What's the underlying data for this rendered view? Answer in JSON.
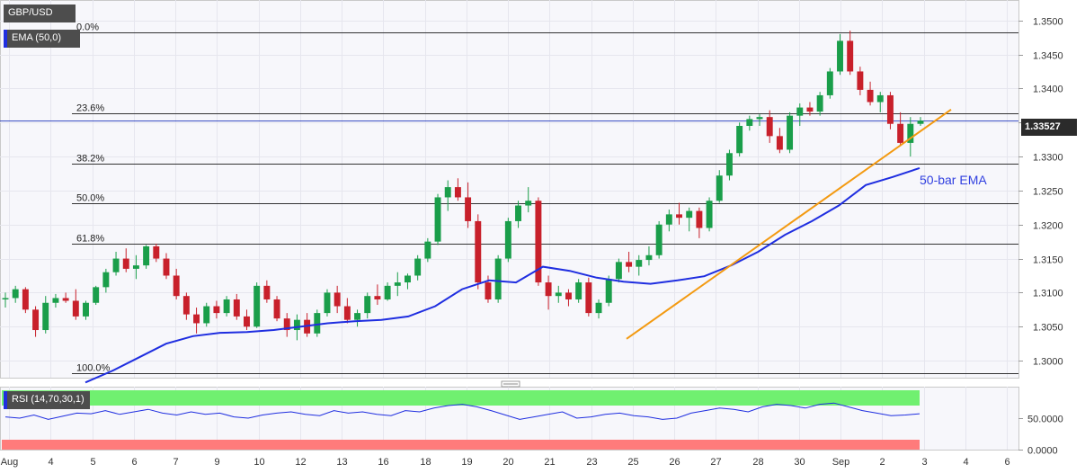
{
  "symbol": "GBP/USD",
  "indicator": "EMA (50,0)",
  "rsi_label": "RSI (14,70,30,1)",
  "last_price": "1.33527",
  "ema_annotation": "50-bar EMA",
  "colors": {
    "bull": "#1a9e4a",
    "bear": "#c8202b",
    "ema": "#1f2ee0",
    "trendline": "#f39a11",
    "fib": "#333333",
    "rsi_overbought": "#70f070",
    "rsi_oversold": "#ff7b7b",
    "rsi_line": "#1f2ee0",
    "badge_bg": "#4d4d4d"
  },
  "chart_data": [
    {
      "type": "candlestick",
      "title": "GBP/USD",
      "ylim": [
        1.2975,
        1.353
      ],
      "y_ticks": [
        "1.3000",
        "1.3050",
        "1.3100",
        "1.3150",
        "1.3200",
        "1.3250",
        "1.3300",
        "1.3350",
        "1.3400",
        "1.3450",
        "1.3500"
      ],
      "x_ticks": [
        "Aug",
        "4",
        "5",
        "6",
        "7",
        "9",
        "10",
        "12",
        "13",
        "16",
        "18",
        "19",
        "20",
        "21",
        "23",
        "25",
        "26",
        "27",
        "28",
        "30",
        "Sep",
        "2",
        "3",
        "4",
        "6"
      ],
      "last_price": 1.33527,
      "fibonacci": [
        {
          "label": "0.0%",
          "value": 1.3483
        },
        {
          "label": "23.6%",
          "value": 1.3363
        },
        {
          "label": "38.2%",
          "value": 1.329
        },
        {
          "label": "50.0%",
          "value": 1.3231
        },
        {
          "label": "61.8%",
          "value": 1.3172
        },
        {
          "label": "100.0%",
          "value": 1.2981
        }
      ],
      "trendline": {
        "from": 1.3032,
        "to": 1.3369
      },
      "ema_50": [
        1.2968,
        1.2985,
        1.3005,
        1.3025,
        1.3036,
        1.3041,
        1.3042,
        1.3045,
        1.305,
        1.3055,
        1.3058,
        1.306,
        1.3065,
        1.308,
        1.3105,
        1.3118,
        1.3115,
        1.3138,
        1.3132,
        1.3122,
        1.3116,
        1.3113,
        1.3118,
        1.3124,
        1.314,
        1.316,
        1.3185,
        1.3205,
        1.3228,
        1.3258,
        1.327,
        1.3283
      ],
      "candles": [
        [
          1.309,
          1.31,
          1.3078,
          1.3092
        ],
        [
          1.3092,
          1.311,
          1.3085,
          1.3105
        ],
        [
          1.3105,
          1.3108,
          1.307,
          1.3075
        ],
        [
          1.3075,
          1.308,
          1.3035,
          1.3045
        ],
        [
          1.3045,
          1.3095,
          1.304,
          1.3085
        ],
        [
          1.3085,
          1.3098,
          1.3078,
          1.3092
        ],
        [
          1.3092,
          1.31,
          1.3085,
          1.3088
        ],
        [
          1.3088,
          1.3105,
          1.306,
          1.3065
        ],
        [
          1.3065,
          1.3088,
          1.306,
          1.3085
        ],
        [
          1.3085,
          1.311,
          1.3082,
          1.3108
        ],
        [
          1.3108,
          1.3135,
          1.31,
          1.313
        ],
        [
          1.313,
          1.316,
          1.3125,
          1.315
        ],
        [
          1.315,
          1.3165,
          1.313,
          1.3135
        ],
        [
          1.3135,
          1.3155,
          1.312,
          1.314
        ],
        [
          1.314,
          1.317,
          1.3135,
          1.3168
        ],
        [
          1.3168,
          1.3172,
          1.3145,
          1.315
        ],
        [
          1.315,
          1.3158,
          1.312,
          1.3125
        ],
        [
          1.3125,
          1.3135,
          1.309,
          1.3095
        ],
        [
          1.3095,
          1.31,
          1.306,
          1.3068
        ],
        [
          1.3068,
          1.3078,
          1.304,
          1.3055
        ],
        [
          1.3055,
          1.3085,
          1.305,
          1.308
        ],
        [
          1.308,
          1.3088,
          1.3062,
          1.307
        ],
        [
          1.307,
          1.3095,
          1.3065,
          1.309
        ],
        [
          1.309,
          1.3098,
          1.306,
          1.3065
        ],
        [
          1.3065,
          1.3075,
          1.3045,
          1.305
        ],
        [
          1.305,
          1.3115,
          1.3048,
          1.311
        ],
        [
          1.311,
          1.3118,
          1.3085,
          1.309
        ],
        [
          1.309,
          1.3095,
          1.3058,
          1.3062
        ],
        [
          1.3062,
          1.307,
          1.3035,
          1.3045
        ],
        [
          1.3045,
          1.3068,
          1.303,
          1.306
        ],
        [
          1.306,
          1.307,
          1.3035,
          1.304
        ],
        [
          1.304,
          1.3075,
          1.3035,
          1.307
        ],
        [
          1.307,
          1.3105,
          1.3065,
          1.31
        ],
        [
          1.31,
          1.311,
          1.307,
          1.308
        ],
        [
          1.308,
          1.3092,
          1.3055,
          1.306
        ],
        [
          1.306,
          1.3075,
          1.305,
          1.307
        ],
        [
          1.307,
          1.31,
          1.3062,
          1.3095
        ],
        [
          1.3095,
          1.3112,
          1.3082,
          1.309
        ],
        [
          1.309,
          1.3115,
          1.3088,
          1.311
        ],
        [
          1.311,
          1.313,
          1.3095,
          1.3115
        ],
        [
          1.3115,
          1.3128,
          1.3105,
          1.3125
        ],
        [
          1.3125,
          1.3155,
          1.3118,
          1.315
        ],
        [
          1.315,
          1.318,
          1.3145,
          1.3175
        ],
        [
          1.3175,
          1.3245,
          1.317,
          1.324
        ],
        [
          1.324,
          1.3265,
          1.322,
          1.3255
        ],
        [
          1.3255,
          1.3268,
          1.3235,
          1.324
        ],
        [
          1.324,
          1.3262,
          1.3195,
          1.3205
        ],
        [
          1.3205,
          1.3215,
          1.3105,
          1.3115
        ],
        [
          1.3115,
          1.3125,
          1.3085,
          1.309
        ],
        [
          1.309,
          1.3155,
          1.3085,
          1.315
        ],
        [
          1.315,
          1.321,
          1.3145,
          1.3205
        ],
        [
          1.3205,
          1.3235,
          1.3195,
          1.3228
        ],
        [
          1.3228,
          1.3255,
          1.3218,
          1.3235
        ],
        [
          1.3235,
          1.324,
          1.311,
          1.3115
        ],
        [
          1.3115,
          1.3125,
          1.3075,
          1.3095
        ],
        [
          1.3095,
          1.311,
          1.3085,
          1.31
        ],
        [
          1.31,
          1.3105,
          1.308,
          1.309
        ],
        [
          1.309,
          1.312,
          1.3085,
          1.3115
        ],
        [
          1.3115,
          1.3122,
          1.3065,
          1.307
        ],
        [
          1.307,
          1.309,
          1.3062,
          1.3085
        ],
        [
          1.3085,
          1.3125,
          1.308,
          1.312
        ],
        [
          1.312,
          1.315,
          1.3115,
          1.3145
        ],
        [
          1.3145,
          1.316,
          1.313,
          1.3138
        ],
        [
          1.3138,
          1.3155,
          1.3125,
          1.3148
        ],
        [
          1.3148,
          1.3168,
          1.314,
          1.3155
        ],
        [
          1.3155,
          1.3205,
          1.315,
          1.32
        ],
        [
          1.32,
          1.3222,
          1.319,
          1.3215
        ],
        [
          1.3215,
          1.3232,
          1.32,
          1.321
        ],
        [
          1.321,
          1.3225,
          1.319,
          1.322
        ],
        [
          1.322,
          1.3225,
          1.318,
          1.3195
        ],
        [
          1.3195,
          1.324,
          1.319,
          1.3235
        ],
        [
          1.3235,
          1.328,
          1.3232,
          1.3272
        ],
        [
          1.3272,
          1.331,
          1.3265,
          1.3305
        ],
        [
          1.3305,
          1.335,
          1.33,
          1.3345
        ],
        [
          1.3345,
          1.336,
          1.3338,
          1.3355
        ],
        [
          1.3355,
          1.3362,
          1.3345,
          1.3358
        ],
        [
          1.3358,
          1.3368,
          1.332,
          1.333
        ],
        [
          1.333,
          1.3342,
          1.3305,
          1.331
        ],
        [
          1.331,
          1.3365,
          1.3305,
          1.336
        ],
        [
          1.336,
          1.3378,
          1.3345,
          1.3372
        ],
        [
          1.3372,
          1.338,
          1.336,
          1.3366
        ],
        [
          1.3366,
          1.3395,
          1.336,
          1.339
        ],
        [
          1.339,
          1.343,
          1.3385,
          1.3425
        ],
        [
          1.3425,
          1.348,
          1.342,
          1.347
        ],
        [
          1.347,
          1.3485,
          1.342,
          1.3425
        ],
        [
          1.3425,
          1.3432,
          1.339,
          1.3398
        ],
        [
          1.3398,
          1.341,
          1.3375,
          1.338
        ],
        [
          1.338,
          1.3395,
          1.3365,
          1.339
        ],
        [
          1.339,
          1.3395,
          1.334,
          1.3348
        ],
        [
          1.3348,
          1.3365,
          1.3315,
          1.332
        ],
        [
          1.332,
          1.3358,
          1.33,
          1.3348
        ],
        [
          1.3348,
          1.3358,
          1.3345,
          1.33527
        ]
      ],
      "rsi": {
        "title": "RSI (14,70,30,1)",
        "ylim": [
          0,
          100
        ],
        "y_ticks": [
          "0.0000",
          "50.0000"
        ],
        "levels": [
          70,
          30
        ],
        "values": [
          52,
          50,
          55,
          48,
          53,
          58,
          57,
          62,
          56,
          60,
          64,
          58,
          55,
          60,
          56,
          58,
          52,
          50,
          55,
          58,
          60,
          56,
          54,
          62,
          58,
          60,
          56,
          54,
          62,
          60,
          66,
          70,
          72,
          68,
          62,
          55,
          48,
          52,
          56,
          60,
          50,
          52,
          56,
          58,
          54,
          52,
          48,
          50,
          58,
          62,
          66,
          64,
          60,
          68,
          72,
          70,
          66,
          72,
          74,
          68,
          62,
          58,
          54,
          55,
          57
        ]
      }
    }
  ]
}
